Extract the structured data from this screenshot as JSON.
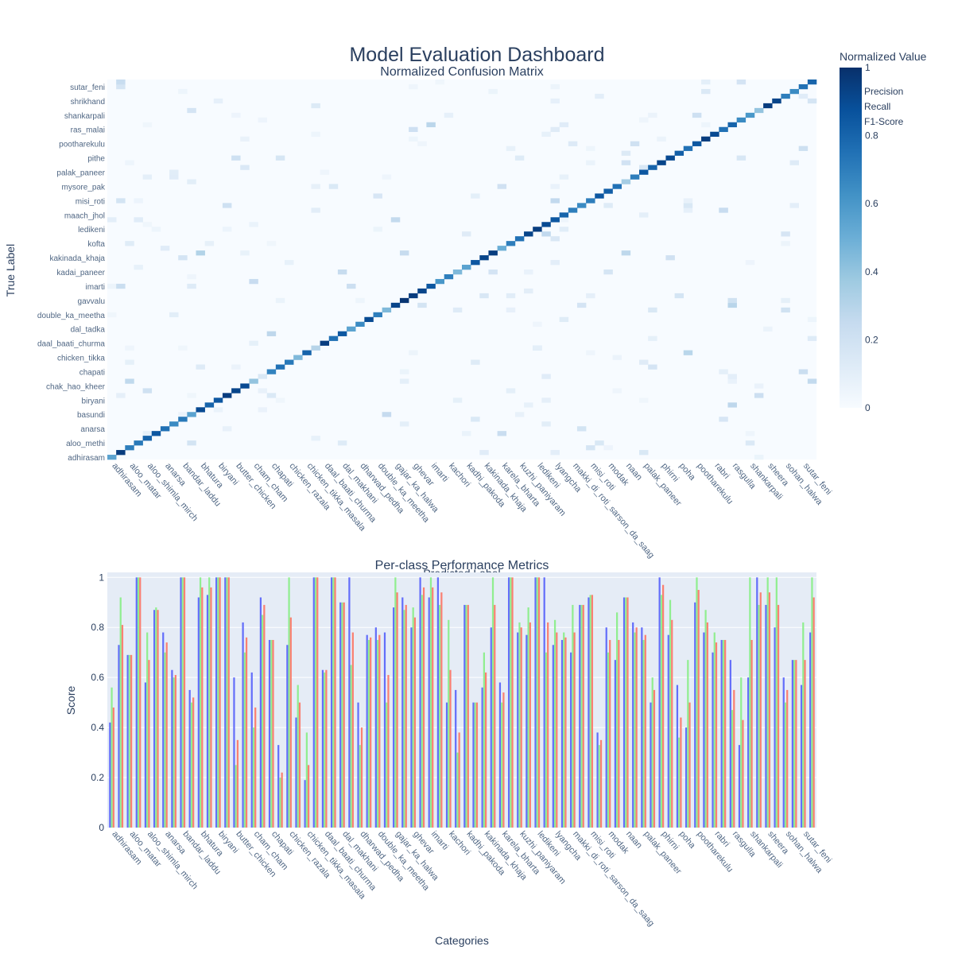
{
  "title": "Model Evaluation Dashboard",
  "colors": {
    "title": "#2a3f5f",
    "axis_text": "#506784",
    "plot_bg": "#e5ecf6",
    "grid": "#ffffff",
    "precision": "#636efa",
    "recall": "#90ee90",
    "f1": "#fa8072",
    "blues_scale": [
      "#f7fbff",
      "#deebf7",
      "#c6dbef",
      "#9ecae1",
      "#6baed6",
      "#4292c6",
      "#2171b5",
      "#08519c",
      "#08306b"
    ]
  },
  "chart_data": [
    {
      "type": "heatmap",
      "title": "Normalized Confusion Matrix",
      "xlabel": "Predicted Label",
      "ylabel": "True Label",
      "x_tick_labels": [
        "adhirasam",
        "aloo_matar",
        "aloo_shimla_mirch",
        "anarsa",
        "bandar_laddu",
        "bhatura",
        "biryani",
        "butter_chicken",
        "cham_cham",
        "chapati",
        "chicken_razala",
        "chicken_tikka_masala",
        "daal_baati_churma",
        "dal_makhani",
        "dharwad_pedha",
        "double_ka_meetha",
        "gajar_ka_halwa",
        "ghevar",
        "imarti",
        "kachori",
        "kadhi_pakoda",
        "kakinada_khaja",
        "karela_bharta",
        "kuzhi_paniyaram",
        "ledikeni",
        "lyangcha",
        "makki_di_roti_sarson_da_saag",
        "misi_roti",
        "modak",
        "naan",
        "palak_paneer",
        "phirni",
        "poha",
        "pootharekulu",
        "rabri",
        "rasgulla",
        "shankarpali",
        "sheera",
        "sohan_halwa",
        "sutar_feni"
      ],
      "y_tick_labels": [
        "adhirasam",
        "aloo_methi",
        "anarsa",
        "basundi",
        "biryani",
        "chak_hao_kheer",
        "chapati",
        "chicken_tikka",
        "daal_baati_churma",
        "dal_tadka",
        "double_ka_meetha",
        "gavvalu",
        "imarti",
        "kadai_paneer",
        "kakinada_khaja",
        "kofta",
        "ledikeni",
        "maach_jhol",
        "misi_roti",
        "mysore_pak",
        "palak_paneer",
        "pithe",
        "pootharekulu",
        "ras_malai",
        "shankarpali",
        "shrikhand",
        "sutar_feni"
      ],
      "n_classes": 80,
      "diagonal_values": [
        0.55,
        0.95,
        0.7,
        0.72,
        0.8,
        0.85,
        0.75,
        0.65,
        0.72,
        0.55,
        0.9,
        0.8,
        0.85,
        0.95,
        0.92,
        0.9,
        0.4,
        0.15,
        0.68,
        0.75,
        0.72,
        0.45,
        0.8,
        0.3,
        0.95,
        0.75,
        0.85,
        0.55,
        0.65,
        0.9,
        0.7,
        0.45,
        0.92,
        0.98,
        0.95,
        0.92,
        0.85,
        0.6,
        0.7,
        0.45,
        0.55,
        0.85,
        0.92,
        0.95,
        0.5,
        0.7,
        0.75,
        0.92,
        0.95,
        0.9,
        0.85,
        0.8,
        0.7,
        0.65,
        0.7,
        0.85,
        0.82,
        0.75,
        0.35,
        0.7,
        0.85,
        0.8,
        0.92,
        0.9,
        0.82,
        0.75,
        0.85,
        0.95,
        0.9,
        0.75,
        0.8,
        0.65,
        0.6,
        0.4,
        0.95,
        0.92,
        0.7,
        0.65,
        0.75,
        0.8
      ],
      "colorbar": {
        "title": "Normalized Value",
        "ticks": [
          0,
          0.2,
          0.4,
          0.6,
          0.8,
          1
        ],
        "tick_labels": [
          "0",
          "0.2",
          "0.4",
          "0.6",
          "0.8",
          "1"
        ]
      }
    },
    {
      "type": "bar",
      "title": "Per-class Performance Metrics",
      "xlabel": "Categories",
      "ylabel": "Score",
      "ylim": [
        0,
        1.02
      ],
      "y_ticks": [
        0,
        0.2,
        0.4,
        0.6,
        0.8,
        1
      ],
      "y_tick_labels": [
        "0",
        "0.2",
        "0.4",
        "0.6",
        "0.8",
        "1"
      ],
      "x_tick_labels": [
        "adhirasam",
        "aloo_matar",
        "aloo_shimla_mirch",
        "anarsa",
        "bandar_laddu",
        "bhatura",
        "biryani",
        "butter_chicken",
        "cham_cham",
        "chapati",
        "chicken_razala",
        "chicken_tikka_masala",
        "daal_baati_churma",
        "dal_makhani",
        "dharwad_pedha",
        "double_ka_meetha",
        "gajar_ka_halwa",
        "ghevar",
        "imarti",
        "kachori",
        "kadhi_pakoda",
        "kakinada_khaja",
        "karela_bharta",
        "kuzhi_paniyaram",
        "ledikeni",
        "lyangcha",
        "makki_di_roti_sarson_da_saag",
        "misi_roti",
        "modak",
        "naan",
        "palak_paneer",
        "phirni",
        "poha",
        "pootharekulu",
        "rabri",
        "rasgulla",
        "shankarpali",
        "sheera",
        "sohan_halwa",
        "sutar_feni"
      ],
      "legend_placement": "top-right",
      "series": [
        {
          "name": "Precision",
          "values": [
            0.42,
            0.73,
            0.69,
            1.0,
            0.58,
            0.87,
            0.78,
            0.63,
            1.0,
            0.55,
            0.92,
            0.93,
            1.0,
            1.0,
            0.6,
            0.82,
            0.62,
            0.92,
            0.75,
            0.33,
            0.73,
            0.44,
            0.19,
            1.0,
            0.63,
            1.0,
            0.9,
            1.0,
            0.5,
            0.77,
            0.8,
            0.78,
            0.88,
            0.92,
            0.8,
            1.0,
            0.92,
            1.0,
            0.5,
            0.55,
            0.89,
            0.5,
            0.56,
            0.8,
            0.58,
            1.0,
            0.78,
            0.77,
            1.0,
            1.0,
            0.73,
            0.75,
            0.7,
            0.89,
            0.92,
            0.38,
            0.8,
            0.67,
            0.92,
            0.82,
            0.8,
            0.5,
            1.0,
            0.77,
            0.57,
            0.4,
            0.9,
            0.78,
            0.7,
            0.75,
            0.67,
            0.33,
            0.6,
            1.0,
            0.89,
            0.8,
            0.6,
            0.67,
            0.57,
            0.78
          ]
        },
        {
          "name": "Recall",
          "values": [
            0.56,
            0.92,
            0.69,
            1.0,
            0.78,
            0.88,
            0.7,
            0.6,
            1.0,
            0.5,
            1.0,
            1.0,
            1.0,
            1.0,
            0.25,
            0.7,
            0.4,
            0.85,
            0.75,
            0.2,
            1.0,
            0.57,
            0.38,
            1.0,
            0.62,
            1.0,
            0.9,
            0.65,
            0.33,
            0.75,
            0.75,
            0.5,
            1.0,
            0.87,
            0.88,
            0.93,
            1.0,
            0.89,
            0.83,
            0.3,
            0.89,
            0.5,
            0.7,
            1.0,
            0.5,
            1.0,
            0.82,
            0.88,
            1.0,
            0.7,
            0.83,
            0.78,
            0.89,
            0.89,
            0.93,
            0.33,
            0.7,
            0.86,
            0.92,
            0.78,
            0.75,
            0.6,
            0.93,
            0.91,
            0.36,
            0.67,
            1.0,
            0.87,
            0.78,
            0.75,
            0.47,
            0.6,
            1.0,
            0.89,
            1.0,
            1.0,
            0.5,
            0.67,
            0.82,
            1.0
          ]
        },
        {
          "name": "F1-Score",
          "values": [
            0.48,
            0.81,
            0.69,
            1.0,
            0.67,
            0.87,
            0.74,
            0.61,
            1.0,
            0.52,
            0.96,
            0.96,
            1.0,
            1.0,
            0.35,
            0.76,
            0.48,
            0.89,
            0.75,
            0.22,
            0.84,
            0.5,
            0.25,
            1.0,
            0.63,
            1.0,
            0.9,
            0.78,
            0.4,
            0.76,
            0.77,
            0.61,
            0.94,
            0.89,
            0.84,
            0.96,
            0.96,
            0.94,
            0.63,
            0.38,
            0.89,
            0.5,
            0.62,
            0.89,
            0.54,
            1.0,
            0.8,
            0.82,
            1.0,
            0.82,
            0.78,
            0.76,
            0.78,
            0.89,
            0.93,
            0.35,
            0.75,
            0.75,
            0.92,
            0.8,
            0.77,
            0.55,
            0.97,
            0.83,
            0.44,
            0.5,
            0.95,
            0.82,
            0.74,
            0.75,
            0.55,
            0.43,
            0.75,
            0.94,
            0.94,
            0.89,
            0.55,
            0.67,
            0.67,
            0.92
          ]
        }
      ]
    }
  ]
}
